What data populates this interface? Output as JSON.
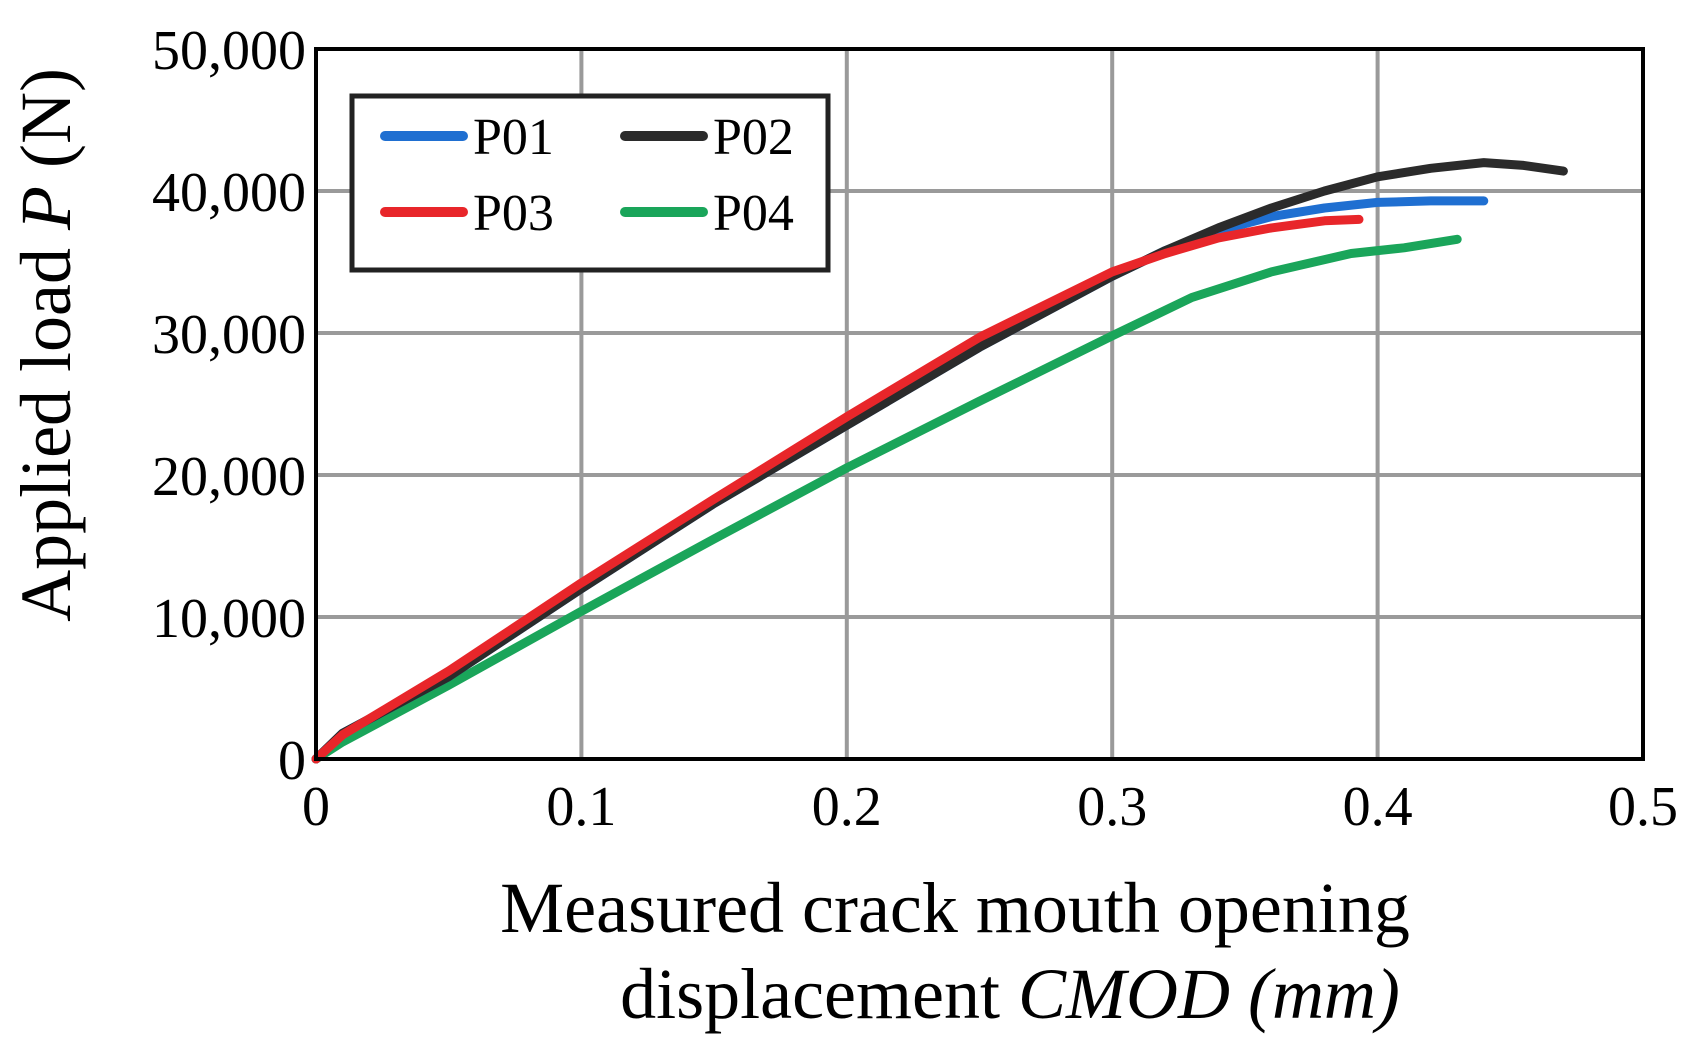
{
  "chart_data": {
    "type": "line",
    "title": "",
    "xlabel_line1": "Measured crack mouth opening",
    "xlabel_line2_plain": "displacement ",
    "xlabel_line2_italic": "CMOD (mm)",
    "ylabel_plain": "Applied load ",
    "ylabel_italic": "P",
    "ylabel_unit": " (N)",
    "xlim": [
      0,
      0.5
    ],
    "ylim": [
      0,
      50000
    ],
    "x_ticks": [
      0,
      0.1,
      0.2,
      0.3,
      0.4,
      0.5
    ],
    "x_tick_labels": [
      "0",
      "0.1",
      "0.2",
      "0.3",
      "0.4",
      "0.5"
    ],
    "y_ticks": [
      0,
      10000,
      20000,
      30000,
      40000,
      50000
    ],
    "y_tick_labels": [
      "0",
      "10,000",
      "20,000",
      "30,000",
      "40,000",
      "50,000"
    ],
    "grid": true,
    "legend_position": "top-left",
    "legend_columns": 2,
    "series": [
      {
        "name": "P01",
        "color": "#1f6fd1",
        "x": [
          0,
          0.01,
          0.05,
          0.1,
          0.15,
          0.2,
          0.25,
          0.3,
          0.32,
          0.34,
          0.36,
          0.38,
          0.4,
          0.42,
          0.44
        ],
        "y": [
          0,
          1800,
          5800,
          12000,
          18000,
          23500,
          29000,
          34000,
          35800,
          37200,
          38200,
          38800,
          39200,
          39300,
          39300
        ]
      },
      {
        "name": "P02",
        "color": "#2b2b2b",
        "x": [
          0,
          0.01,
          0.05,
          0.1,
          0.15,
          0.2,
          0.25,
          0.3,
          0.32,
          0.34,
          0.36,
          0.38,
          0.4,
          0.42,
          0.44,
          0.455,
          0.47
        ],
        "y": [
          0,
          1800,
          5800,
          12000,
          18000,
          23500,
          29000,
          34000,
          35800,
          37400,
          38800,
          40000,
          41000,
          41600,
          42000,
          41800,
          41400
        ]
      },
      {
        "name": "P03",
        "color": "#e8262a",
        "x": [
          0,
          0.01,
          0.05,
          0.1,
          0.15,
          0.2,
          0.25,
          0.3,
          0.32,
          0.34,
          0.36,
          0.38,
          0.393
        ],
        "y": [
          0,
          1700,
          6200,
          12400,
          18300,
          24100,
          29700,
          34300,
          35600,
          36700,
          37400,
          37900,
          38000
        ]
      },
      {
        "name": "P04",
        "color": "#1aa55a",
        "x": [
          0,
          0.01,
          0.05,
          0.1,
          0.15,
          0.2,
          0.25,
          0.3,
          0.33,
          0.36,
          0.39,
          0.41,
          0.43
        ],
        "y": [
          0,
          1200,
          5200,
          10400,
          15500,
          20500,
          25200,
          29800,
          32500,
          34300,
          35600,
          36000,
          36600
        ]
      }
    ]
  }
}
